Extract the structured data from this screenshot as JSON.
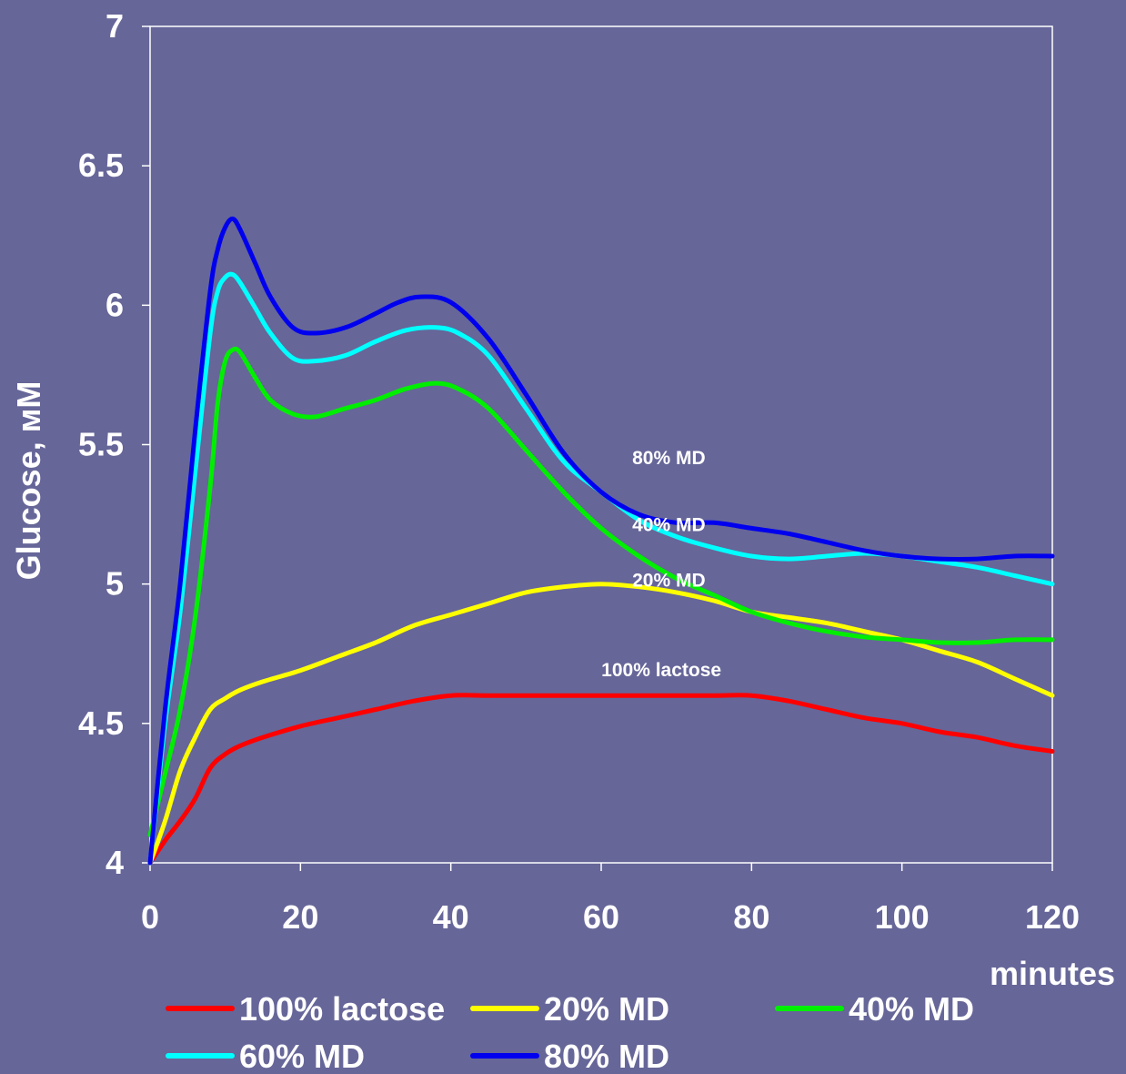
{
  "chart_data": {
    "type": "line",
    "ylabel": "Glucose, мМ",
    "xlabel": "minutes",
    "xlim": [
      0,
      120
    ],
    "ylim": [
      4,
      7
    ],
    "x_ticks": [
      "0",
      "20",
      "40",
      "60",
      "80",
      "100",
      "120"
    ],
    "y_ticks": [
      "4",
      "4.5",
      "5",
      "5.5",
      "6",
      "6.5",
      "7"
    ],
    "grid": false,
    "legend_position": "bottom",
    "background_color": "#666699",
    "axis_color": "#ffffff",
    "series": [
      {
        "name": "100% lactose",
        "color": "#ff0000",
        "points": [
          [
            0,
            4
          ],
          [
            2,
            4.08
          ],
          [
            4,
            4.15
          ],
          [
            6,
            4.23
          ],
          [
            8,
            4.34
          ],
          [
            10,
            4.39
          ],
          [
            12,
            4.42
          ],
          [
            15,
            4.45
          ],
          [
            20,
            4.49
          ],
          [
            25,
            4.52
          ],
          [
            30,
            4.55
          ],
          [
            35,
            4.58
          ],
          [
            40,
            4.6
          ],
          [
            45,
            4.6
          ],
          [
            50,
            4.6
          ],
          [
            55,
            4.6
          ],
          [
            60,
            4.6
          ],
          [
            65,
            4.6
          ],
          [
            70,
            4.6
          ],
          [
            75,
            4.6
          ],
          [
            80,
            4.6
          ],
          [
            85,
            4.58
          ],
          [
            90,
            4.55
          ],
          [
            95,
            4.52
          ],
          [
            100,
            4.5
          ],
          [
            105,
            4.47
          ],
          [
            110,
            4.45
          ],
          [
            115,
            4.42
          ],
          [
            120,
            4.4
          ]
        ]
      },
      {
        "name": "20% MD",
        "color": "#ffff00",
        "points": [
          [
            0,
            4
          ],
          [
            2,
            4.15
          ],
          [
            4,
            4.33
          ],
          [
            6,
            4.45
          ],
          [
            8,
            4.55
          ],
          [
            10,
            4.59
          ],
          [
            12,
            4.62
          ],
          [
            15,
            4.65
          ],
          [
            20,
            4.69
          ],
          [
            25,
            4.74
          ],
          [
            30,
            4.79
          ],
          [
            35,
            4.85
          ],
          [
            40,
            4.89
          ],
          [
            45,
            4.93
          ],
          [
            50,
            4.97
          ],
          [
            55,
            4.99
          ],
          [
            60,
            5.0
          ],
          [
            65,
            4.99
          ],
          [
            70,
            4.97
          ],
          [
            75,
            4.94
          ],
          [
            80,
            4.9
          ],
          [
            85,
            4.88
          ],
          [
            90,
            4.86
          ],
          [
            95,
            4.83
          ],
          [
            100,
            4.8
          ],
          [
            105,
            4.76
          ],
          [
            110,
            4.72
          ],
          [
            115,
            4.66
          ],
          [
            120,
            4.6
          ]
        ]
      },
      {
        "name": "40% MD",
        "color": "#00ee00",
        "points": [
          [
            0,
            4.1
          ],
          [
            2,
            4.32
          ],
          [
            4,
            4.55
          ],
          [
            6,
            4.88
          ],
          [
            8,
            5.35
          ],
          [
            9,
            5.65
          ],
          [
            10,
            5.8
          ],
          [
            11,
            5.84
          ],
          [
            12,
            5.83
          ],
          [
            14,
            5.74
          ],
          [
            16,
            5.66
          ],
          [
            19,
            5.61
          ],
          [
            22,
            5.6
          ],
          [
            26,
            5.63
          ],
          [
            30,
            5.66
          ],
          [
            34,
            5.7
          ],
          [
            38,
            5.72
          ],
          [
            41,
            5.7
          ],
          [
            45,
            5.63
          ],
          [
            50,
            5.48
          ],
          [
            55,
            5.33
          ],
          [
            60,
            5.2
          ],
          [
            65,
            5.1
          ],
          [
            70,
            5.02
          ],
          [
            75,
            4.96
          ],
          [
            80,
            4.9
          ],
          [
            85,
            4.86
          ],
          [
            90,
            4.83
          ],
          [
            95,
            4.81
          ],
          [
            100,
            4.8
          ],
          [
            105,
            4.79
          ],
          [
            110,
            4.79
          ],
          [
            115,
            4.8
          ],
          [
            120,
            4.8
          ]
        ]
      },
      {
        "name": "60% MD",
        "color": "#00ffff",
        "points": [
          [
            0,
            4
          ],
          [
            2,
            4.5
          ],
          [
            4,
            4.9
          ],
          [
            6,
            5.4
          ],
          [
            8,
            5.9
          ],
          [
            9,
            6.05
          ],
          [
            10,
            6.1
          ],
          [
            11,
            6.11
          ],
          [
            12,
            6.08
          ],
          [
            14,
            5.99
          ],
          [
            16,
            5.9
          ],
          [
            19,
            5.81
          ],
          [
            22,
            5.8
          ],
          [
            26,
            5.82
          ],
          [
            30,
            5.87
          ],
          [
            34,
            5.91
          ],
          [
            38,
            5.92
          ],
          [
            41,
            5.9
          ],
          [
            45,
            5.82
          ],
          [
            50,
            5.63
          ],
          [
            55,
            5.44
          ],
          [
            60,
            5.33
          ],
          [
            65,
            5.23
          ],
          [
            70,
            5.17
          ],
          [
            75,
            5.13
          ],
          [
            80,
            5.1
          ],
          [
            85,
            5.09
          ],
          [
            90,
            5.1
          ],
          [
            95,
            5.11
          ],
          [
            100,
            5.1
          ],
          [
            105,
            5.08
          ],
          [
            110,
            5.06
          ],
          [
            115,
            5.03
          ],
          [
            120,
            5.0
          ]
        ]
      },
      {
        "name": "80% MD",
        "color": "#0000ee",
        "points": [
          [
            0,
            4
          ],
          [
            2,
            4.55
          ],
          [
            4,
            5.0
          ],
          [
            6,
            5.55
          ],
          [
            8,
            6.05
          ],
          [
            9,
            6.2
          ],
          [
            10,
            6.28
          ],
          [
            11,
            6.31
          ],
          [
            12,
            6.27
          ],
          [
            14,
            6.15
          ],
          [
            16,
            6.03
          ],
          [
            19,
            5.92
          ],
          [
            22,
            5.9
          ],
          [
            26,
            5.92
          ],
          [
            30,
            5.97
          ],
          [
            33,
            6.01
          ],
          [
            36,
            6.03
          ],
          [
            40,
            6.01
          ],
          [
            45,
            5.88
          ],
          [
            50,
            5.68
          ],
          [
            55,
            5.47
          ],
          [
            60,
            5.33
          ],
          [
            65,
            5.25
          ],
          [
            70,
            5.22
          ],
          [
            75,
            5.22
          ],
          [
            80,
            5.2
          ],
          [
            85,
            5.18
          ],
          [
            90,
            5.15
          ],
          [
            95,
            5.12
          ],
          [
            100,
            5.1
          ],
          [
            105,
            5.09
          ],
          [
            110,
            5.09
          ],
          [
            115,
            5.1
          ],
          [
            120,
            5.1
          ]
        ]
      }
    ],
    "annotations": [
      {
        "text": "80% MD",
        "x": 69,
        "y": 5.43
      },
      {
        "text": "40% MD",
        "x": 69,
        "y": 5.19
      },
      {
        "text": "20% MD",
        "x": 69,
        "y": 4.99
      },
      {
        "text": "100% lactose",
        "x": 68,
        "y": 4.67
      }
    ]
  }
}
